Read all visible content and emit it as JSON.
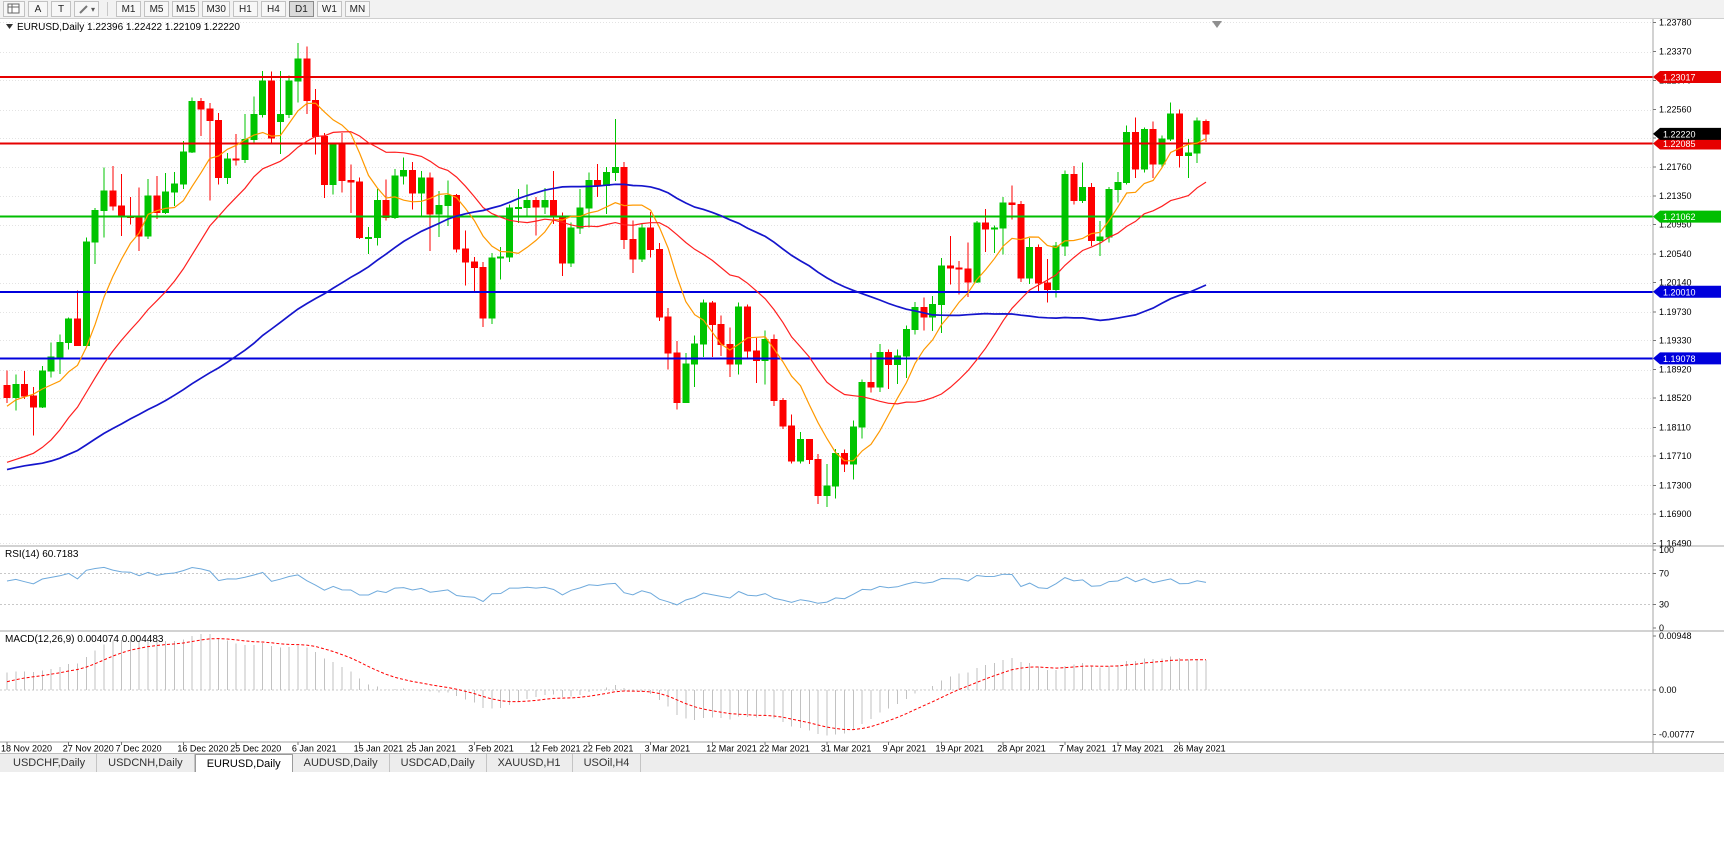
{
  "toolbar": {
    "a": "A",
    "t": "T",
    "dropdown": "▾",
    "timeframes": [
      "M1",
      "M5",
      "M15",
      "M30",
      "H1",
      "H4",
      "D1",
      "W1",
      "MN"
    ],
    "active_timeframe": "D1"
  },
  "chart": {
    "info_line": "EURUSD,Daily 1.22396 1.22422 1.22109 1.22220",
    "symbol": "EURUSD,Daily",
    "ohlc": {
      "open": "1.22396",
      "high": "1.22422",
      "low": "1.22109",
      "close": "1.22220"
    },
    "price_ticks": [
      "1.23780",
      "1.23370",
      "1.22970",
      "1.22560",
      "1.22160",
      "1.21760",
      "1.21350",
      "1.20950",
      "1.20540",
      "1.20140",
      "1.19730",
      "1.19330",
      "1.18920",
      "1.18520",
      "1.18110",
      "1.17710",
      "1.17300",
      "1.16900",
      "1.16490"
    ],
    "view": {
      "price_top": 1.238,
      "price_bottom": 1.1648
    },
    "hlines": [
      {
        "price": 1.23017,
        "label": "1.23017",
        "color": "#E60000"
      },
      {
        "price": 1.22085,
        "label": "1.22085",
        "color": "#E60000"
      },
      {
        "price": 1.21062,
        "label": "1.21062",
        "color": "#00BE00"
      },
      {
        "price": 1.2001,
        "label": "1.20010",
        "color": "#0000DC"
      },
      {
        "price": 1.19078,
        "label": "1.19078",
        "color": "#0000DC"
      }
    ],
    "current_price": {
      "label": "1.22220",
      "value": 1.2222,
      "bg": "#000000"
    },
    "colors": {
      "up": "#00C400",
      "down": "#FE0000",
      "grid": "#E3E3E3",
      "separator": "#A6A6A6",
      "rsi_line": "#6FAADC",
      "rsi_level": "#C8C8C8",
      "macd_hist": "#C2C2C2",
      "macd_signal": "#FF0000",
      "axis_text": "#000000",
      "shift_marker": "#8F8F8F"
    }
  },
  "chart_data": {
    "type": "candlestick",
    "symbol": "EURUSD",
    "timeframe": "Daily",
    "title": "EURUSD Daily with RSI(14) and MACD(12,26,9)",
    "ylim": [
      1.1648,
      1.238
    ],
    "date_labels": [
      [
        "18 Nov 2020",
        0
      ],
      [
        "27 Nov 2020",
        7
      ],
      [
        "7 Dec 2020",
        13
      ],
      [
        "16 Dec 2020",
        20
      ],
      [
        "25 Dec 2020",
        26
      ],
      [
        "6 Jan 2021",
        33
      ],
      [
        "15 Jan 2021",
        40
      ],
      [
        "25 Jan 2021",
        46
      ],
      [
        "3 Feb 2021",
        53
      ],
      [
        "12 Feb 2021",
        60
      ],
      [
        "22 Feb 2021",
        66
      ],
      [
        "3 Mar 2021",
        73
      ],
      [
        "12 Mar 2021",
        80
      ],
      [
        "22 Mar 2021",
        86
      ],
      [
        "31 Mar 2021",
        93
      ],
      [
        "9 Apr 2021",
        100
      ],
      [
        "19 Apr 2021",
        106
      ],
      [
        "28 Apr 2021",
        113
      ],
      [
        "7 May 2021",
        120
      ],
      [
        "17 May 2021",
        126
      ],
      [
        "26 May 2021",
        133
      ]
    ],
    "prehistory_closes": [
      1.184,
      1.1855,
      1.183,
      1.181,
      1.1783,
      1.176,
      1.1716,
      1.1722,
      1.174,
      1.1785,
      1.1745,
      1.1712,
      1.1665,
      1.163,
      1.1638,
      1.1665,
      1.1712,
      1.174,
      1.1755,
      1.1718,
      1.1735,
      1.176,
      1.1786,
      1.1771,
      1.1745,
      1.177,
      1.181,
      1.183,
      1.1826,
      1.1786,
      1.1748,
      1.1725,
      1.175,
      1.1716,
      1.169,
      1.172,
      1.1745,
      1.178,
      1.182,
      1.1846,
      1.182,
      1.179,
      1.1772,
      1.175,
      1.1725,
      1.17,
      1.165,
      1.162,
      1.1635,
      1.166,
      1.17,
      1.1745,
      1.1772,
      1.18,
      1.1822,
      1.181,
      1.1832,
      1.1865,
      1.1885,
      1.186
    ],
    "candles": [
      [
        1.187,
        1.1891,
        1.1845,
        1.1853
      ],
      [
        1.1853,
        1.1885,
        1.1835,
        1.1871
      ],
      [
        1.1871,
        1.189,
        1.1851,
        1.1855
      ],
      [
        1.1855,
        1.1868,
        1.18,
        1.184
      ],
      [
        1.184,
        1.1897,
        1.1838,
        1.189
      ],
      [
        1.189,
        1.193,
        1.1881,
        1.191
      ],
      [
        1.191,
        1.1941,
        1.1886,
        1.193
      ],
      [
        1.193,
        1.1965,
        1.192,
        1.1963
      ],
      [
        1.1963,
        1.2003,
        1.1945,
        1.1926
      ],
      [
        1.1926,
        1.2077,
        1.1923,
        1.2071
      ],
      [
        1.2071,
        1.2118,
        1.204,
        1.2115
      ],
      [
        1.2115,
        1.2175,
        1.2077,
        1.2142
      ],
      [
        1.2142,
        1.2177,
        1.2115,
        1.2121
      ],
      [
        1.2121,
        1.2166,
        1.2079,
        1.2107
      ],
      [
        1.2107,
        1.2134,
        1.2095,
        1.2105
      ],
      [
        1.2105,
        1.2147,
        1.2058,
        1.2079
      ],
      [
        1.2079,
        1.2159,
        1.2075,
        1.2135
      ],
      [
        1.2135,
        1.2163,
        1.2103,
        1.2112
      ],
      [
        1.2112,
        1.2167,
        1.211,
        1.2141
      ],
      [
        1.2141,
        1.2169,
        1.2121,
        1.2152
      ],
      [
        1.2152,
        1.2212,
        1.2145,
        1.2197
      ],
      [
        1.2197,
        1.2273,
        1.2195,
        1.2267
      ],
      [
        1.2267,
        1.2272,
        1.2219,
        1.2257
      ],
      [
        1.2257,
        1.2265,
        1.2129,
        1.2241
      ],
      [
        1.2241,
        1.2251,
        1.2151,
        1.2161
      ],
      [
        1.2161,
        1.2195,
        1.2152,
        1.2187
      ],
      [
        1.2187,
        1.2222,
        1.2178,
        1.2186
      ],
      [
        1.2186,
        1.225,
        1.2181,
        1.2214
      ],
      [
        1.2214,
        1.2274,
        1.2209,
        1.2249
      ],
      [
        1.2249,
        1.231,
        1.2245,
        1.2296
      ],
      [
        1.2296,
        1.2309,
        1.2209,
        1.2216
      ],
      [
        1.2239,
        1.231,
        1.2194,
        1.2249
      ],
      [
        1.2249,
        1.2304,
        1.2244,
        1.2296
      ],
      [
        1.2296,
        1.2349,
        1.2266,
        1.2327
      ],
      [
        1.2327,
        1.2344,
        1.225,
        1.2269
      ],
      [
        1.2269,
        1.2285,
        1.2193,
        1.2218
      ],
      [
        1.2218,
        1.2223,
        1.2132,
        1.2151
      ],
      [
        1.2151,
        1.2208,
        1.2137,
        1.2207
      ],
      [
        1.2207,
        1.2223,
        1.214,
        1.2157
      ],
      [
        1.2157,
        1.2179,
        1.2111,
        1.2155
      ],
      [
        1.2155,
        1.2161,
        1.2075,
        1.2077
      ],
      [
        1.2077,
        1.2092,
        1.2054,
        1.2077
      ],
      [
        1.2077,
        1.2145,
        1.2066,
        1.2129
      ],
      [
        1.2129,
        1.2158,
        1.2101,
        1.2105
      ],
      [
        1.2105,
        1.2173,
        1.2103,
        1.2163
      ],
      [
        1.2163,
        1.2189,
        1.2151,
        1.2171
      ],
      [
        1.2171,
        1.2183,
        1.2116,
        1.2139
      ],
      [
        1.2139,
        1.217,
        1.2108,
        1.216
      ],
      [
        1.216,
        1.2168,
        1.2058,
        1.211
      ],
      [
        1.211,
        1.2142,
        1.2078,
        1.2122
      ],
      [
        1.2122,
        1.2157,
        1.2093,
        1.2136
      ],
      [
        1.2136,
        1.2138,
        1.2056,
        1.2061
      ],
      [
        1.2061,
        1.2087,
        1.201,
        1.2043
      ],
      [
        1.2043,
        1.205,
        1.1999,
        1.2035
      ],
      [
        1.2035,
        1.2043,
        1.1952,
        1.1964
      ],
      [
        1.1964,
        1.2055,
        1.1956,
        1.2048
      ],
      [
        1.2048,
        1.2064,
        1.2018,
        1.205
      ],
      [
        1.205,
        1.2123,
        1.2043,
        1.2118
      ],
      [
        1.2118,
        1.2145,
        1.2097,
        1.2119
      ],
      [
        1.2119,
        1.2151,
        1.2106,
        1.2129
      ],
      [
        1.2129,
        1.2134,
        1.208,
        1.212
      ],
      [
        1.212,
        1.2146,
        1.211,
        1.2129
      ],
      [
        1.2129,
        1.217,
        1.2096,
        1.2106
      ],
      [
        1.2106,
        1.2112,
        1.2023,
        1.2041
      ],
      [
        1.2041,
        1.2098,
        1.2036,
        1.209
      ],
      [
        1.209,
        1.2145,
        1.2082,
        1.2118
      ],
      [
        1.2118,
        1.2168,
        1.2091,
        1.2157
      ],
      [
        1.2157,
        1.218,
        1.2134,
        1.215
      ],
      [
        1.215,
        1.2176,
        1.211,
        1.2168
      ],
      [
        1.2168,
        1.2243,
        1.2156,
        1.2175
      ],
      [
        1.2175,
        1.2183,
        1.2061,
        1.2074
      ],
      [
        1.2074,
        1.2101,
        1.2027,
        1.2047
      ],
      [
        1.2047,
        1.2097,
        1.2043,
        1.209
      ],
      [
        1.209,
        1.2113,
        1.2049,
        1.206
      ],
      [
        1.206,
        1.2069,
        1.196,
        1.1966
      ],
      [
        1.1966,
        1.1978,
        1.1892,
        1.1915
      ],
      [
        1.1915,
        1.1932,
        1.1836,
        1.1846
      ],
      [
        1.1846,
        1.1915,
        1.1845,
        1.19
      ],
      [
        1.19,
        1.194,
        1.1868,
        1.1928
      ],
      [
        1.1928,
        1.199,
        1.191,
        1.1985
      ],
      [
        1.1985,
        1.1988,
        1.191,
        1.1955
      ],
      [
        1.1955,
        1.1968,
        1.1911,
        1.1927
      ],
      [
        1.1927,
        1.1951,
        1.1882,
        1.19
      ],
      [
        1.19,
        1.1986,
        1.1885,
        1.198
      ],
      [
        1.198,
        1.1983,
        1.1906,
        1.1918
      ],
      [
        1.1918,
        1.1936,
        1.1873,
        1.1905
      ],
      [
        1.1905,
        1.1947,
        1.1871,
        1.1934
      ],
      [
        1.1934,
        1.1941,
        1.1841,
        1.1849
      ],
      [
        1.1849,
        1.1852,
        1.1809,
        1.1813
      ],
      [
        1.1813,
        1.1829,
        1.1761,
        1.1764
      ],
      [
        1.1764,
        1.1805,
        1.1761,
        1.1794
      ],
      [
        1.1794,
        1.1795,
        1.176,
        1.1766
      ],
      [
        1.1766,
        1.1774,
        1.1704,
        1.1716
      ],
      [
        1.1716,
        1.176,
        1.17,
        1.1729
      ],
      [
        1.1729,
        1.1781,
        1.1712,
        1.1775
      ],
      [
        1.1775,
        1.178,
        1.1749,
        1.176
      ],
      [
        1.176,
        1.1821,
        1.1738,
        1.1812
      ],
      [
        1.1812,
        1.1878,
        1.1796,
        1.1874
      ],
      [
        1.1874,
        1.1915,
        1.186,
        1.1868
      ],
      [
        1.1868,
        1.1928,
        1.1861,
        1.1916
      ],
      [
        1.1916,
        1.192,
        1.1865,
        1.1899
      ],
      [
        1.1899,
        1.192,
        1.1872,
        1.1911
      ],
      [
        1.1911,
        1.1954,
        1.188,
        1.1948
      ],
      [
        1.1948,
        1.1987,
        1.1941,
        1.1979
      ],
      [
        1.1979,
        1.1993,
        1.1947,
        1.1966
      ],
      [
        1.1966,
        1.1995,
        1.1946,
        1.1983
      ],
      [
        1.1983,
        1.2048,
        1.1943,
        1.2037
      ],
      [
        1.2037,
        1.2079,
        1.2011,
        1.2034
      ],
      [
        1.2034,
        1.2044,
        1.1997,
        1.2033
      ],
      [
        1.2033,
        1.207,
        1.1994,
        1.2015
      ],
      [
        1.2015,
        1.21,
        1.2013,
        1.2097
      ],
      [
        1.2097,
        1.2117,
        1.2057,
        1.2089
      ],
      [
        1.2089,
        1.2094,
        1.2055,
        1.209
      ],
      [
        1.209,
        1.2134,
        1.2053,
        1.2125
      ],
      [
        1.2125,
        1.215,
        1.2102,
        1.2123
      ],
      [
        1.2123,
        1.2128,
        1.2015,
        1.202
      ],
      [
        1.202,
        1.2076,
        1.2012,
        1.2063
      ],
      [
        1.2063,
        1.2067,
        1.1999,
        1.2013
      ],
      [
        1.2013,
        1.2047,
        1.1986,
        1.2004
      ],
      [
        1.2004,
        1.2071,
        1.1993,
        1.2065
      ],
      [
        1.2065,
        1.2171,
        1.2051,
        1.2165
      ],
      [
        1.2165,
        1.2177,
        1.2123,
        1.2129
      ],
      [
        1.2129,
        1.2182,
        1.2125,
        1.2147
      ],
      [
        1.2147,
        1.2153,
        1.2065,
        1.2073
      ],
      [
        1.2073,
        1.21,
        1.2051,
        1.2078
      ],
      [
        1.2078,
        1.2148,
        1.207,
        1.2144
      ],
      [
        1.2144,
        1.2169,
        1.2126,
        1.2154
      ],
      [
        1.2154,
        1.2234,
        1.2151,
        1.2224
      ],
      [
        1.2224,
        1.2245,
        1.216,
        1.2173
      ],
      [
        1.2173,
        1.2231,
        1.2168,
        1.2228
      ],
      [
        1.2228,
        1.2239,
        1.216,
        1.218
      ],
      [
        1.218,
        1.222,
        1.2174,
        1.2215
      ],
      [
        1.2215,
        1.2266,
        1.2212,
        1.225
      ],
      [
        1.225,
        1.2256,
        1.2175,
        1.2192
      ],
      [
        1.2192,
        1.2215,
        1.216,
        1.2195
      ],
      [
        1.2195,
        1.2245,
        1.2181,
        1.224
      ],
      [
        1.22396,
        1.22422,
        1.22109,
        1.2222
      ]
    ],
    "indicators": {
      "ma": [
        {
          "name": "ma-fast",
          "period": 8,
          "color": "#FF9900"
        },
        {
          "name": "ma-medium",
          "period": 20,
          "color": "#FF2020"
        },
        {
          "name": "ma-slow",
          "period": 55,
          "color": "#1515CC"
        }
      ],
      "rsi": {
        "title": "RSI(14)",
        "period": 14,
        "value": "60.7183",
        "levels": [
          70,
          30
        ],
        "scale_labels": [
          "100",
          "70",
          "30",
          "0"
        ]
      },
      "macd": {
        "title": "MACD(12,26,9)",
        "value_line": "0.004074 0.004483",
        "fast": 12,
        "slow": 26,
        "signal": 9,
        "scale_labels": [
          "0.00948",
          "0.00",
          "-0.00777"
        ]
      }
    }
  },
  "tabs": {
    "items": [
      "USDCHF,Daily",
      "USDCNH,Daily",
      "EURUSD,Daily",
      "AUDUSD,Daily",
      "USDCAD,Daily",
      "XAUUSD,H1",
      "USOil,H4"
    ],
    "active_index": 2
  }
}
